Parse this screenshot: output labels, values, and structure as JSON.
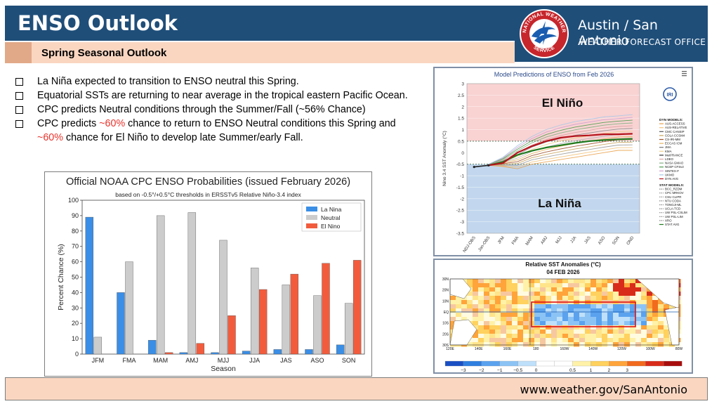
{
  "header": {
    "title": "ENSO Outlook",
    "subtitle": "Spring Seasonal Outlook"
  },
  "brand": {
    "city": "Austin / San Antonio",
    "office": "WEATHER FORECAST OFFICE",
    "logo_icon": "nws-logo-icon",
    "logo_text": "NATIONAL WEATHER SERVICE"
  },
  "bullets": [
    {
      "parts": [
        {
          "t": "La Niña expected to transition to ENSO neutral this Spring."
        }
      ]
    },
    {
      "parts": [
        {
          "t": "Equatorial SSTs are returning to near average in the tropical eastern Pacific Ocean."
        }
      ]
    },
    {
      "parts": [
        {
          "t": "CPC predicts Neutral conditions through the Summer/Fall (~56% Chance)"
        }
      ]
    },
    {
      "parts": [
        {
          "t": "CPC predicts "
        },
        {
          "t": "~60%",
          "hl": true
        },
        {
          "t": " chance to return to ENSO Neutral conditions this Spring and "
        },
        {
          "t": "~60%",
          "hl": true
        },
        {
          "t": " chance for El Niño to develop late Summer/early Fall."
        }
      ]
    }
  ],
  "chart_data": [
    {
      "type": "bar",
      "title": "Official NOAA CPC ENSO Probabilities (issued February 2026)",
      "subtitle": "based on -0.5°/+0.5°C thresholds in ERSSTv5 Relative Niño-3.4 index",
      "xlabel": "Season",
      "ylabel": "Percent Chance (%)",
      "ylim": [
        0,
        100
      ],
      "yticks": [
        0,
        10,
        20,
        30,
        40,
        50,
        60,
        70,
        80,
        90,
        100
      ],
      "legend_position": "top-right",
      "categories": [
        "JFM",
        "FMA",
        "MAM",
        "AMJ",
        "MJJ",
        "JJA",
        "JAS",
        "ASO",
        "SON"
      ],
      "series": [
        {
          "name": "La Nina",
          "color": "#3a8ee6",
          "values": [
            89,
            40,
            9,
            1,
            1,
            2,
            3,
            3,
            6
          ]
        },
        {
          "name": "Neutral",
          "color": "#cccccc",
          "values": [
            11,
            60,
            90,
            92,
            74,
            56,
            45,
            38,
            33
          ]
        },
        {
          "name": "El Nino",
          "color": "#f25c3d",
          "values": [
            0,
            0,
            1,
            7,
            25,
            42,
            52,
            59,
            61
          ]
        }
      ]
    },
    {
      "type": "line",
      "title": "Model Predictions of ENSO from Feb 2026",
      "ylabel": "Nino 3.4 SST Anomaly (°C)",
      "ylim": [
        -3.5,
        3
      ],
      "yticks": [
        "3",
        "2.5",
        "2",
        "1.5",
        "1",
        "0.5",
        "0",
        "-0.5",
        "-1",
        "-1.5",
        "-2",
        "-2.5",
        "-3",
        "-3.5"
      ],
      "categories": [
        "NDJ-OBS",
        "Jan-OBS",
        "JFM",
        "FMA",
        "MAM",
        "AMJ",
        "MJJ",
        "JJA",
        "JAS",
        "ASO",
        "SON",
        "OND"
      ],
      "region_labels": [
        "El Niño",
        "La Niña"
      ],
      "logo": "IRI",
      "dyn_header": "DYN MODELS:",
      "dyn_models": [
        "AUS-ACCESS",
        "AUS-RELATIVE",
        "CMC CANSIP",
        "COLA CCSM4",
        "CS-IRI-MM",
        "ECCAS ICM",
        "JMA",
        "KMA",
        "MetFRANCE",
        "LDEO",
        "NASA GMAO",
        "NCEP CFSv2",
        "SINTEX-F",
        "UKMO",
        "DYN AVG"
      ],
      "stat_header": "STAT MODELS:",
      "stat_models": [
        "BCC_RZDM",
        "CPC MRKOV",
        "CSU CLIPR",
        "NTU CODA",
        "TONGJI-ML",
        "UCLA-TCD",
        "UW PSL-CSLIM",
        "UW PSL-LIM",
        "XRO",
        "STAT AVG"
      ],
      "dyn_avg": [
        null,
        -0.55,
        -0.45,
        0.0,
        0.28,
        0.5,
        0.65,
        0.72,
        0.75,
        0.8,
        0.8,
        0.82
      ],
      "stat_avg": [
        null,
        -0.55,
        -0.4,
        -0.1,
        0.08,
        0.22,
        0.32,
        0.42,
        0.5,
        0.55,
        0.58,
        0.6
      ],
      "obs": [
        -0.62,
        -0.55
      ],
      "model_range_high": [
        null,
        -0.5,
        -0.2,
        0.3,
        0.7,
        1.0,
        1.2,
        1.35,
        1.45,
        1.55,
        1.6,
        1.65
      ],
      "model_range_low": [
        null,
        -0.55,
        -0.6,
        -0.7,
        -0.5,
        -0.4,
        -0.3,
        -0.2,
        -0.1,
        0.0,
        0.1,
        0.1
      ]
    },
    {
      "type": "heatmap",
      "title": "Relative SST Anomalies (°C)",
      "date": "04 FEB 2026",
      "lat_labels": [
        "30N",
        "20N",
        "10N",
        "EQ",
        "10S",
        "20S",
        "30S"
      ],
      "lon_labels": [
        "120E",
        "140E",
        "160E",
        "180",
        "160W",
        "140W",
        "120W",
        "100W",
        "80W"
      ],
      "colorbar_ticks": [
        "−3",
        "−2",
        "−1",
        "−0.5",
        "0",
        "0.5",
        "1",
        "2",
        "3"
      ],
      "colorbar_colors": [
        "#1a4fc4",
        "#2f7fe0",
        "#5aa2ee",
        "#8cc3f5",
        "#bfe0fa",
        "#ffffff",
        "#ffffff",
        "#fff2a8",
        "#ffd15e",
        "#ffa43a",
        "#f26a1e",
        "#d92b1a",
        "#a80d0d"
      ],
      "highlight_box": "Niño-3.4 region"
    }
  ],
  "footer": {
    "link": "www.weather.gov/SanAntonio"
  }
}
